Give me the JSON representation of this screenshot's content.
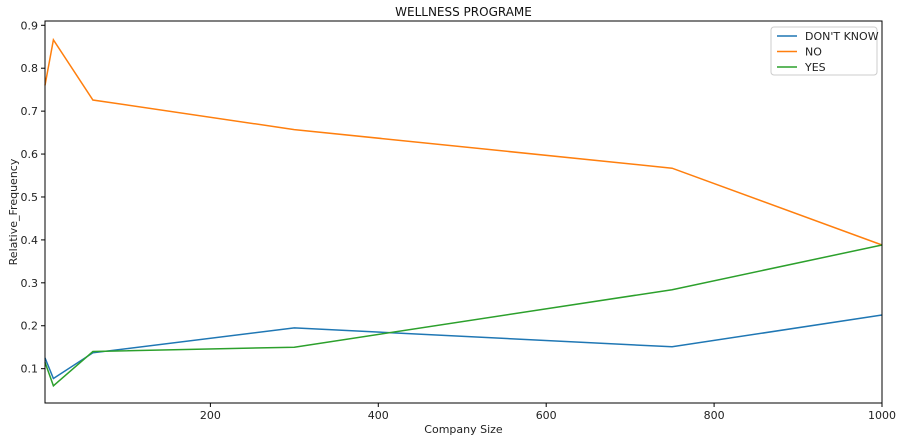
{
  "chart_data": {
    "type": "line",
    "title": "WELLNESS PROGRAME",
    "xlabel": "Company Size",
    "ylabel": "Relative_Frequency",
    "xlim": [
      3,
      1000
    ],
    "ylim": [
      0.02,
      0.91
    ],
    "xticks": [
      200,
      400,
      600,
      800,
      1000
    ],
    "yticks": [
      0.1,
      0.2,
      0.3,
      0.4,
      0.5,
      0.6,
      0.7,
      0.8,
      0.9
    ],
    "grid": false,
    "legend_position": "top-right",
    "x": [
      3,
      13,
      60,
      300,
      750,
      1000
    ],
    "series": [
      {
        "name": "DON'T KNOW",
        "color": "#1f77b4",
        "values": [
          0.125,
          0.077,
          0.137,
          0.195,
          0.151,
          0.225
        ]
      },
      {
        "name": "NO",
        "color": "#ff7f0e",
        "values": [
          0.76,
          0.866,
          0.726,
          0.657,
          0.567,
          0.388
        ]
      },
      {
        "name": "YES",
        "color": "#2ca02c",
        "values": [
          0.115,
          0.06,
          0.14,
          0.15,
          0.284,
          0.388
        ]
      }
    ]
  }
}
